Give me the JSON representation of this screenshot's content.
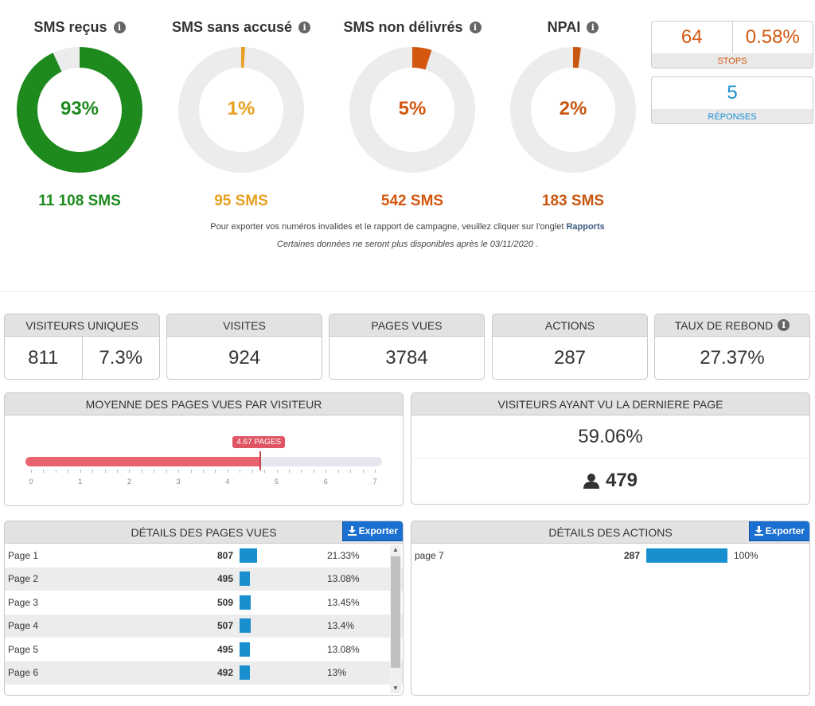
{
  "sms_stats": [
    {
      "title": "SMS reçus",
      "pct_label": "93%",
      "pct": 93,
      "count_label": "11 108 SMS",
      "color": "#1e8a1e"
    },
    {
      "title": "SMS sans accusé",
      "pct_label": "1%",
      "pct": 1,
      "count_label": "95 SMS",
      "color": "#e8a020"
    },
    {
      "title": "SMS non délivrés",
      "pct_label": "5%",
      "pct": 5,
      "count_label": "542 SMS",
      "color": "#d4570f"
    },
    {
      "title": "NPAI",
      "pct_label": "2%",
      "pct": 2,
      "count_label": "183 SMS",
      "color": "#c8560f"
    }
  ],
  "stops": {
    "count": "64",
    "pct": "0.58%",
    "label": "STOPS",
    "color": "#d4570f"
  },
  "responses": {
    "count": "5",
    "label": "RÉPONSES",
    "color": "#1a8fd0"
  },
  "notes": {
    "export_text": "Pour exporter vos numéros invalides et le rapport de campagne, veuillez cliquer sur l'onglet ",
    "export_link": "Rapports",
    "availability": "Certaines données ne seront plus disponibles après le 03/11/2020 ."
  },
  "kpis": {
    "unique_visitors": {
      "label": "VISITEURS UNIQUES",
      "value": "811",
      "pct": "7.3%"
    },
    "visits": {
      "label": "VISITES",
      "value": "924"
    },
    "page_views": {
      "label": "PAGES VUES",
      "value": "3784"
    },
    "actions": {
      "label": "ACTIONS",
      "value": "287"
    },
    "bounce_rate": {
      "label": "TAUX DE REBOND",
      "value": "27.37%"
    }
  },
  "avg_pages": {
    "title": "MOYENNE DES PAGES VUES PAR VISITEUR",
    "value": 4.67,
    "bubble": "4.67 PAGES",
    "ticks": [
      "0",
      "1",
      "2",
      "3",
      "4",
      "5",
      "6",
      "7"
    ],
    "max": 7
  },
  "last_page": {
    "title": "VISITEURS AYANT VU LA DERNIERE PAGE",
    "pct": "59.06%",
    "count": "479"
  },
  "page_details": {
    "title": "DÉTAILS DES PAGES VUES",
    "export_label": "Exporter",
    "rows": [
      {
        "name": "Page 1",
        "count": "807",
        "pct": "21.33%",
        "frac": 0.2133
      },
      {
        "name": "Page 2",
        "count": "495",
        "pct": "13.08%",
        "frac": 0.1308
      },
      {
        "name": "Page 3",
        "count": "509",
        "pct": "13.45%",
        "frac": 0.1345
      },
      {
        "name": "Page 4",
        "count": "507",
        "pct": "13.4%",
        "frac": 0.134
      },
      {
        "name": "Page 5",
        "count": "495",
        "pct": "13.08%",
        "frac": 0.1308
      },
      {
        "name": "Page 6",
        "count": "492",
        "pct": "13%",
        "frac": 0.13
      }
    ]
  },
  "action_details": {
    "title": "DÉTAILS DES ACTIONS",
    "export_label": "Exporter",
    "rows": [
      {
        "name": "page 7",
        "count": "287",
        "pct": "100%",
        "frac": 1.0
      }
    ]
  }
}
